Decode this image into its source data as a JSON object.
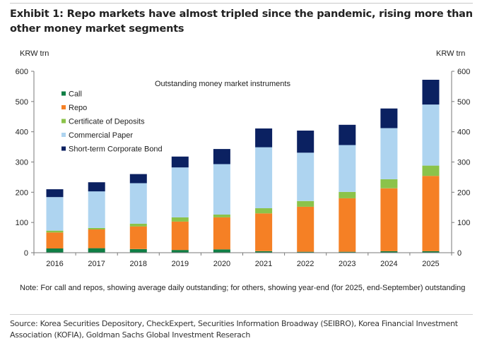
{
  "header": {
    "title": "Exhibit 1: Repo markets have almost tripled since the pandemic, rising more than other money market segments"
  },
  "footer": {
    "note": "Note: For call and repos, showing average daily outstanding; for others, showing year-end (for 2025, end-September) outstanding",
    "source": "Source: Korea Securities Depository, CheckExpert, Securities Information Broadway (SEIBRO), Korea Financial Investment Association (KOFIA), Goldman Sachs Global Investment Reserach"
  },
  "chart_data": {
    "type": "bar",
    "stacked": true,
    "title": "Outstanding money market instruments",
    "xlabel": "",
    "ylabel": "KRW trn",
    "ylabel_right": "KRW trn",
    "ylim": [
      0,
      600
    ],
    "yticks": [
      0,
      100,
      200,
      300,
      400,
      500,
      600
    ],
    "grid": false,
    "legend_position": "top-left",
    "categories": [
      "2016",
      "2017",
      "2018",
      "2019",
      "2020",
      "2021",
      "2022",
      "2023",
      "2024",
      "2025"
    ],
    "series": [
      {
        "name": "Call",
        "color": "#0f7f45",
        "values": [
          14,
          15,
          12,
          9,
          11,
          5,
          3,
          3,
          5,
          5
        ]
      },
      {
        "name": "Repo",
        "color": "#f58025",
        "values": [
          53,
          62,
          75,
          94,
          106,
          125,
          149,
          177,
          208,
          249
        ]
      },
      {
        "name": "Certificate of Deposits",
        "color": "#8bc34a",
        "values": [
          6,
          5,
          9,
          14,
          9,
          17,
          19,
          21,
          30,
          34
        ]
      },
      {
        "name": "Commercial Paper",
        "color": "#aed4f0",
        "values": [
          111,
          121,
          134,
          165,
          167,
          202,
          160,
          155,
          169,
          202
        ]
      },
      {
        "name": "Short-term Corporate Bond",
        "color": "#0b2161",
        "values": [
          26,
          30,
          30,
          36,
          50,
          62,
          73,
          67,
          65,
          82
        ]
      }
    ]
  }
}
